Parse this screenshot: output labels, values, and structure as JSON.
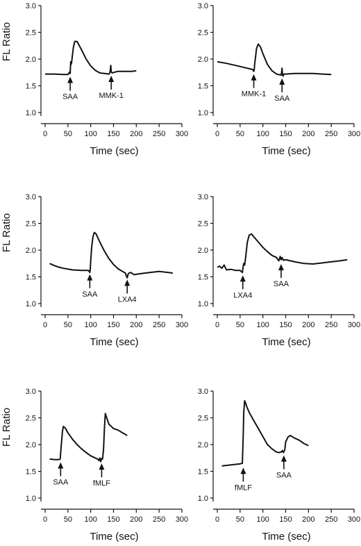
{
  "figure": {
    "panels_per_row": 2
  },
  "chart_data": [
    {
      "type": "line",
      "xlabel": "Time (sec)",
      "ylabel": "FL Ratio",
      "xlim": [
        0,
        300
      ],
      "ylim": [
        1.0,
        3.0
      ],
      "xticks": [
        0,
        50,
        100,
        150,
        200,
        250,
        300
      ],
      "yticks": [
        "1.0",
        "1.5",
        "2.0",
        "2.5",
        "3.0"
      ],
      "series": [
        {
          "x": [
            0,
            20,
            40,
            50,
            54,
            55,
            56,
            57,
            58,
            60,
            62,
            65,
            70,
            80,
            90,
            100,
            110,
            120,
            130,
            140,
            142,
            143,
            144,
            145,
            147,
            150,
            160,
            170,
            180,
            190,
            200
          ],
          "y": [
            1.72,
            1.72,
            1.71,
            1.71,
            1.76,
            1.73,
            1.95,
            1.9,
            1.93,
            2.08,
            2.22,
            2.33,
            2.33,
            2.17,
            2.0,
            1.87,
            1.79,
            1.74,
            1.73,
            1.72,
            1.74,
            1.8,
            1.88,
            1.76,
            1.74,
            1.75,
            1.77,
            1.77,
            1.77,
            1.77,
            1.78
          ]
        }
      ],
      "annotations": [
        {
          "label": "SAA",
          "x": 55,
          "y": 1.72
        },
        {
          "label": "MMK-1",
          "x": 145,
          "y": 1.74
        }
      ]
    },
    {
      "type": "line",
      "xlabel": "Time (sec)",
      "ylabel": "",
      "xlim": [
        0,
        300
      ],
      "ylim": [
        1.0,
        3.0
      ],
      "xticks": [
        0,
        50,
        100,
        150,
        200,
        250,
        300
      ],
      "yticks": [
        "1.0",
        "1.5",
        "2.0",
        "2.5",
        "3.0"
      ],
      "series": [
        {
          "x": [
            0,
            20,
            40,
            60,
            75,
            78,
            80,
            81,
            82,
            84,
            86,
            90,
            95,
            100,
            110,
            120,
            130,
            140,
            141,
            142,
            143,
            144,
            146,
            150,
            170,
            190,
            210,
            230,
            250
          ],
          "y": [
            1.95,
            1.92,
            1.88,
            1.84,
            1.81,
            1.8,
            1.77,
            1.8,
            1.9,
            2.05,
            2.2,
            2.28,
            2.22,
            2.1,
            1.9,
            1.78,
            1.72,
            1.7,
            1.75,
            1.83,
            1.72,
            1.68,
            1.72,
            1.72,
            1.73,
            1.73,
            1.73,
            1.72,
            1.71
          ]
        }
      ],
      "annotations": [
        {
          "label": "MMK-1",
          "x": 80,
          "y": 1.77
        },
        {
          "label": "SAA",
          "x": 142,
          "y": 1.69
        }
      ]
    },
    {
      "type": "line",
      "xlabel": "Time (sec)",
      "ylabel": "FL Ratio",
      "xlim": [
        0,
        300
      ],
      "ylim": [
        1.0,
        3.0
      ],
      "xticks": [
        0,
        50,
        100,
        150,
        200,
        250,
        300
      ],
      "yticks": [
        "1.0",
        "1.5",
        "2.0",
        "2.5",
        "3.0"
      ],
      "series": [
        {
          "x": [
            10,
            20,
            30,
            40,
            60,
            80,
            95,
            98,
            99,
            100,
            102,
            105,
            108,
            112,
            120,
            130,
            140,
            150,
            160,
            170,
            176,
            178,
            180,
            182,
            184,
            188,
            195,
            210,
            230,
            250,
            270,
            280
          ],
          "y": [
            1.75,
            1.71,
            1.68,
            1.66,
            1.63,
            1.62,
            1.62,
            1.58,
            1.64,
            1.8,
            2.05,
            2.25,
            2.33,
            2.3,
            2.15,
            1.98,
            1.84,
            1.73,
            1.65,
            1.6,
            1.57,
            1.52,
            1.48,
            1.55,
            1.57,
            1.58,
            1.54,
            1.56,
            1.58,
            1.6,
            1.58,
            1.57
          ]
        }
      ],
      "annotations": [
        {
          "label": "SAA",
          "x": 98,
          "y": 1.6
        },
        {
          "label": "LXA4",
          "x": 180,
          "y": 1.5
        }
      ]
    },
    {
      "type": "line",
      "xlabel": "Time (sec)",
      "ylabel": "",
      "xlim": [
        0,
        300
      ],
      "ylim": [
        1.0,
        3.0
      ],
      "xticks": [
        0,
        50,
        100,
        150,
        200,
        250,
        300
      ],
      "yticks": [
        "1.0",
        "1.5",
        "2.0",
        "2.5",
        "3.0"
      ],
      "series": [
        {
          "x": [
            0,
            5,
            10,
            15,
            20,
            30,
            40,
            50,
            55,
            57,
            58,
            60,
            62,
            64,
            66,
            70,
            75,
            80,
            90,
            100,
            110,
            120,
            130,
            135,
            138,
            140,
            142,
            145,
            150,
            170,
            190,
            210,
            230,
            250,
            270,
            285
          ],
          "y": [
            1.68,
            1.7,
            1.66,
            1.72,
            1.63,
            1.64,
            1.62,
            1.62,
            1.58,
            1.7,
            1.75,
            1.72,
            1.85,
            2.0,
            2.15,
            2.28,
            2.3,
            2.25,
            2.15,
            2.05,
            1.97,
            1.9,
            1.86,
            1.8,
            1.88,
            1.82,
            1.86,
            1.81,
            1.82,
            1.78,
            1.75,
            1.74,
            1.76,
            1.78,
            1.8,
            1.82
          ]
        }
      ],
      "annotations": [
        {
          "label": "LXA4",
          "x": 56,
          "y": 1.58
        },
        {
          "label": "SAA",
          "x": 140,
          "y": 1.79
        }
      ]
    },
    {
      "type": "line",
      "xlabel": "Time (sec)",
      "ylabel": "FL Ratio",
      "xlim": [
        0,
        300
      ],
      "ylim": [
        1.0,
        3.0
      ],
      "xticks": [
        0,
        50,
        100,
        150,
        200,
        250,
        300
      ],
      "yticks": [
        "1.0",
        "1.5",
        "2.0",
        "2.5",
        "3.0"
      ],
      "series": [
        {
          "x": [
            10,
            20,
            30,
            33,
            35,
            38,
            40,
            45,
            50,
            60,
            70,
            80,
            90,
            100,
            110,
            115,
            118,
            120,
            122,
            124,
            126,
            128,
            130,
            132,
            135,
            140,
            150,
            160,
            170,
            180
          ],
          "y": [
            1.73,
            1.72,
            1.72,
            1.73,
            1.95,
            2.25,
            2.34,
            2.3,
            2.22,
            2.1,
            2.0,
            1.92,
            1.85,
            1.79,
            1.75,
            1.73,
            1.7,
            1.75,
            1.68,
            1.74,
            1.73,
            1.9,
            2.3,
            2.58,
            2.5,
            2.38,
            2.3,
            2.27,
            2.22,
            2.17
          ]
        }
      ],
      "annotations": [
        {
          "label": "SAA",
          "x": 34,
          "y": 1.72
        },
        {
          "label": "fMLF",
          "x": 124,
          "y": 1.7
        }
      ]
    },
    {
      "type": "line",
      "xlabel": "Time (sec)",
      "ylabel": "",
      "xlim": [
        0,
        300
      ],
      "ylim": [
        1.0,
        3.0
      ],
      "xticks": [
        0,
        50,
        100,
        150,
        200,
        250,
        300
      ],
      "yticks": [
        "1.0",
        "1.5",
        "2.0",
        "2.5",
        "3.0"
      ],
      "series": [
        {
          "x": [
            10,
            20,
            30,
            40,
            50,
            55,
            57,
            58,
            60,
            62,
            65,
            70,
            80,
            90,
            100,
            110,
            120,
            130,
            135,
            140,
            143,
            145,
            148,
            150,
            155,
            160,
            170,
            180,
            190,
            200
          ],
          "y": [
            1.6,
            1.61,
            1.62,
            1.63,
            1.64,
            1.65,
            2.2,
            2.6,
            2.82,
            2.78,
            2.7,
            2.6,
            2.45,
            2.3,
            2.15,
            2.0,
            1.92,
            1.86,
            1.85,
            1.86,
            1.89,
            1.85,
            1.9,
            2.05,
            2.14,
            2.17,
            2.12,
            2.08,
            2.02,
            1.98
          ]
        }
      ],
      "annotations": [
        {
          "label": "fMLF",
          "x": 57,
          "y": 1.62
        },
        {
          "label": "SAA",
          "x": 146,
          "y": 1.85
        }
      ]
    }
  ]
}
